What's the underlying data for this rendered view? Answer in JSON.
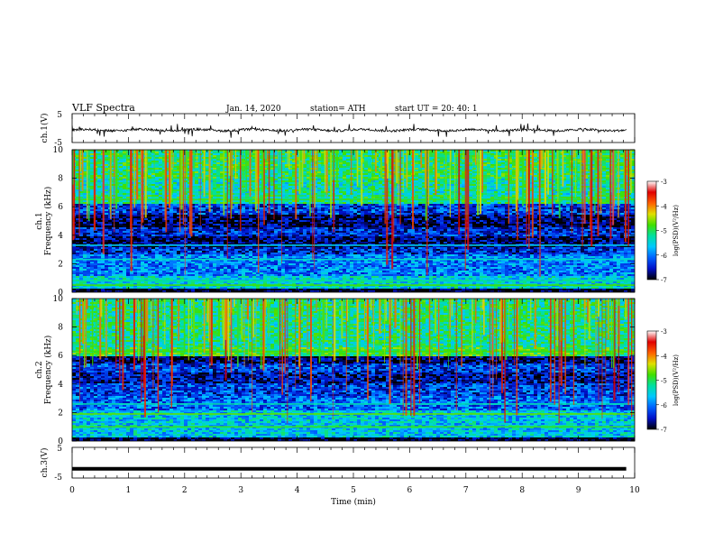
{
  "header": {
    "title": "VLF  Spectra",
    "date": "Jan. 14, 2020",
    "station": "station= ATH",
    "start": "start  UT  =   20: 40: 1"
  },
  "chart_data": [
    {
      "type": "line",
      "panel": "ch1-waveform",
      "ylabel": "ch.1(V)",
      "yticks": [
        "5",
        "-5"
      ],
      "ylim": [
        -5,
        5
      ],
      "x_range_min": [
        0,
        9.85
      ],
      "y_baseline_v": -0.7,
      "color": "#000000"
    },
    {
      "type": "heatmap",
      "panel": "ch1-spectrogram",
      "ylabel": "ch.1\nFrequency (kHz)",
      "ylabel_line1": "ch.1",
      "ylabel_line2": "Frequency  (kHz)",
      "yticks": [
        "0",
        "2",
        "4",
        "6",
        "8",
        "10"
      ],
      "ylim_khz": [
        0,
        10
      ],
      "x_range_min": [
        0,
        9.85
      ],
      "colorbar": {
        "label": "log(PSD)(V²/Hz)",
        "ticks": [
          "-3",
          "-4",
          "-5",
          "-6",
          "-7"
        ],
        "range": [
          -7,
          -3
        ],
        "colors": [
          "#000000",
          "#0010c8",
          "#0060ff",
          "#00c8ff",
          "#00e0a0",
          "#40e000",
          "#e0e000",
          "#ff6000",
          "#e00000",
          "#ffffff"
        ]
      },
      "bands_khz": [
        {
          "lo": 0.0,
          "hi": 0.3,
          "level": -7
        },
        {
          "lo": 0.3,
          "hi": 1.2,
          "level": -5.5
        },
        {
          "lo": 1.2,
          "hi": 2.6,
          "level": -6
        },
        {
          "lo": 2.6,
          "hi": 3.2,
          "level": -6.4
        },
        {
          "lo": 3.2,
          "hi": 3.9,
          "level": -6.8
        },
        {
          "lo": 3.9,
          "hi": 4.6,
          "level": -6.4
        },
        {
          "lo": 4.6,
          "hi": 5.5,
          "level": -6.8
        },
        {
          "lo": 5.5,
          "hi": 6.2,
          "level": -6.3
        },
        {
          "lo": 6.2,
          "hi": 6.8,
          "level": -5.2
        },
        {
          "lo": 6.8,
          "hi": 8.0,
          "level": -5.3
        },
        {
          "lo": 8.0,
          "hi": 10.0,
          "level": -5.1
        }
      ],
      "lines_khz": [
        {
          "f": 0.5,
          "level": -4.8
        },
        {
          "f": 0.8,
          "level": -5.2
        },
        {
          "f": 2.3,
          "level": -5.4
        },
        {
          "f": 3.3,
          "level": -5.6
        },
        {
          "f": 6.5,
          "level": -4.9
        }
      ]
    },
    {
      "type": "heatmap",
      "panel": "ch2-spectrogram",
      "ylabel": "ch.2\nFrequency (kHz)",
      "ylabel_line1": "ch.2",
      "ylabel_line2": "Frequency  (kHz)",
      "yticks": [
        "0",
        "2",
        "4",
        "6",
        "8",
        "10"
      ],
      "ylim_khz": [
        0,
        10
      ],
      "x_range_min": [
        0,
        9.85
      ],
      "colorbar": {
        "label": "log(PSD)(V²/Hz)",
        "ticks": [
          "-3",
          "-4",
          "-5",
          "-6",
          "-7"
        ],
        "range": [
          -7,
          -3
        ]
      },
      "bands_khz": [
        {
          "lo": 0.0,
          "hi": 0.3,
          "level": -7
        },
        {
          "lo": 0.3,
          "hi": 2.2,
          "level": -5.6
        },
        {
          "lo": 2.2,
          "hi": 3.2,
          "level": -6.1
        },
        {
          "lo": 3.2,
          "hi": 4.0,
          "level": -6.3
        },
        {
          "lo": 4.0,
          "hi": 4.8,
          "level": -6.6
        },
        {
          "lo": 4.8,
          "hi": 5.4,
          "level": -6.3
        },
        {
          "lo": 5.4,
          "hi": 6.0,
          "level": -6.8
        },
        {
          "lo": 6.0,
          "hi": 6.6,
          "level": -5.0
        },
        {
          "lo": 6.6,
          "hi": 10.0,
          "level": -5.2
        }
      ],
      "lines_khz": [
        {
          "f": 1.0,
          "level": -4.9
        },
        {
          "f": 1.9,
          "level": -4.7
        },
        {
          "f": 2.6,
          "level": -5.3
        },
        {
          "f": 6.3,
          "level": -4.8
        }
      ]
    },
    {
      "type": "line",
      "panel": "ch3-waveform",
      "ylabel": "ch.3(V)",
      "yticks": [
        "5",
        "-5"
      ],
      "ylim": [
        -5,
        5
      ],
      "x_range_min": [
        0,
        9.85
      ],
      "y_baseline_v": -2.0,
      "color": "#000000"
    }
  ],
  "xaxis": {
    "label": "Time  (min)",
    "ticks": [
      "0",
      "1",
      "2",
      "3",
      "4",
      "5",
      "6",
      "7",
      "8",
      "9",
      "10"
    ],
    "range_min": [
      0,
      10
    ]
  }
}
